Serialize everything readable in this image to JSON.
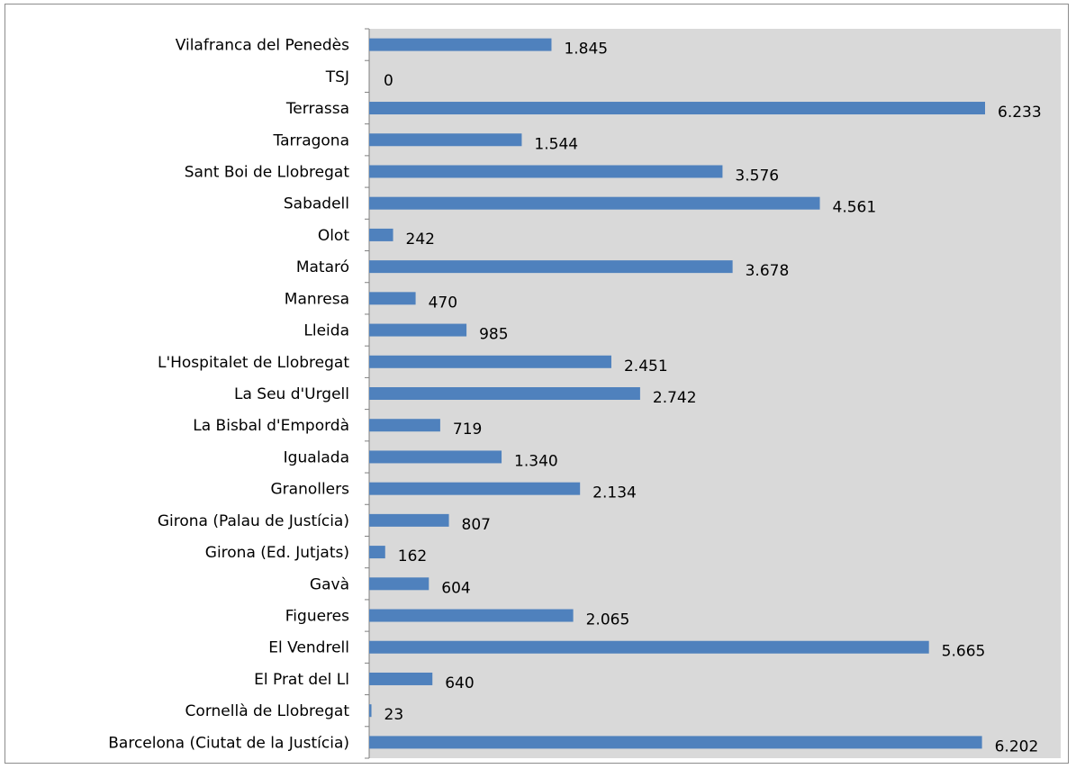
{
  "chart_data": {
    "type": "bar",
    "orientation": "horizontal",
    "title": "",
    "xlabel": "",
    "ylabel": "",
    "xlim": [
      0,
      6233
    ],
    "grid": false,
    "legend": "none",
    "colors": {
      "bar": "#4f81bd",
      "plot_background": "#d9d9d9",
      "frame": "#8c8c8c"
    },
    "categories": [
      "Vilafranca del Penedès",
      "TSJ",
      "Terrassa",
      "Tarragona",
      "Sant Boi de Llobregat",
      "Sabadell",
      "Olot",
      "Mataró",
      "Manresa",
      "Lleida",
      "L'Hospitalet de Llobregat",
      "La Seu d'Urgell",
      "La Bisbal d'Empordà",
      "Igualada",
      "Granollers",
      "Girona (Palau de Justícia)",
      "Girona (Ed. Jutjats)",
      "Gavà",
      "Figueres",
      "El Vendrell",
      "El Prat del Ll",
      "Cornellà de Llobregat",
      "Barcelona (Ciutat de la Justícia)"
    ],
    "values": [
      1845,
      0,
      6233,
      1544,
      3576,
      4561,
      242,
      3678,
      470,
      985,
      2451,
      2742,
      719,
      1340,
      2134,
      807,
      162,
      604,
      2065,
      5665,
      640,
      23,
      6202
    ],
    "value_labels": [
      "1.845",
      "0",
      "6.233",
      "1.544",
      "3.576",
      "4.561",
      "242",
      "3.678",
      "470",
      "985",
      "2.451",
      "2.742",
      "719",
      "1.340",
      "2.134",
      "807",
      "162",
      "604",
      "2.065",
      "5.665",
      "640",
      "23",
      "6.202"
    ]
  }
}
